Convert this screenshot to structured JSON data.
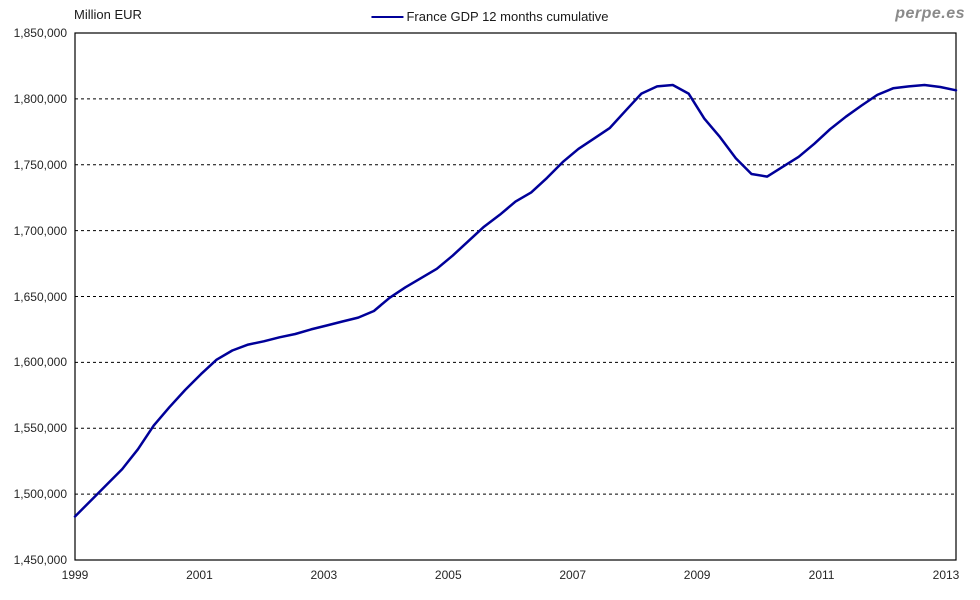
{
  "header": {
    "y_axis_title": "Million EUR",
    "watermark": "perpe.es"
  },
  "legend": {
    "label": "France GDP 12 months cumulative",
    "line_color": "#000099"
  },
  "chart_data": {
    "type": "line",
    "title": "France GDP 12 months cumulative",
    "ylabel": "Million EUR",
    "xlabel": "",
    "units": "Million EUR",
    "grid": "horizontal-dashed",
    "legend_position": "top-center",
    "line_color": "#000099",
    "ylim": [
      1450000,
      1850000
    ],
    "y_tick_interval": 50000,
    "y_tick_values": [
      1850000,
      1800000,
      1750000,
      1700000,
      1650000,
      1600000,
      1550000,
      1500000,
      1450000
    ],
    "x_tick_years": [
      1999,
      2001,
      2003,
      2005,
      2007,
      2009,
      2011,
      2013
    ],
    "xlim": [
      1999.0,
      2013.17
    ],
    "series": [
      {
        "name": "France GDP 12 months cumulative",
        "frequency": "quarterly",
        "x_start": 1999.0,
        "x_step": 0.25,
        "values": [
          1483000,
          1495000,
          1507000,
          1519000,
          1534000,
          1552000,
          1566000,
          1579000,
          1591000,
          1602000,
          1609000,
          1613500,
          1616000,
          1619000,
          1621500,
          1625000,
          1628000,
          1631000,
          1634000,
          1639000,
          1649000,
          1657000,
          1664000,
          1671000,
          1681000,
          1692000,
          1703000,
          1712000,
          1722000,
          1729000,
          1740000,
          1752000,
          1762000,
          1770000,
          1778000,
          1791000,
          1804000,
          1809500,
          1810500,
          1804000,
          1785000,
          1771000,
          1755000,
          1743000,
          1741000,
          1748500,
          1756000,
          1766000,
          1777000,
          1786500,
          1795000,
          1803000,
          1808000,
          1809500,
          1810500,
          1809000,
          1806500
        ]
      }
    ]
  }
}
